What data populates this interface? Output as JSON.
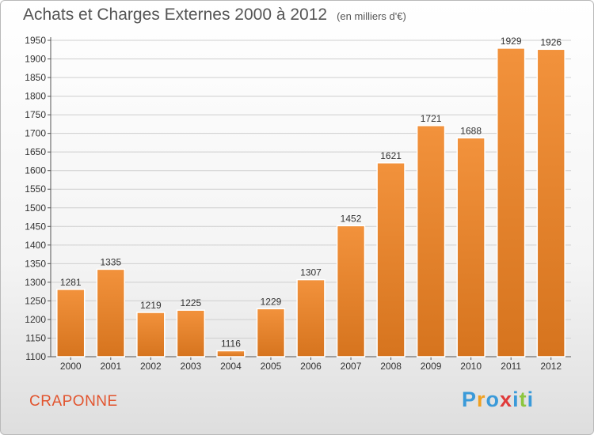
{
  "header": {
    "title": "Achats et Charges Externes 2000 à 2012",
    "subtitle": "(en milliers d'€)"
  },
  "footer": {
    "commune": "CRAPONNE",
    "brand_letters": [
      "P",
      "r",
      "o",
      "x",
      "i",
      "t",
      "i"
    ],
    "brand_colors": [
      "#3a9ad9",
      "#f0a020",
      "#3a9ad9",
      "#e03a3a",
      "#3a9ad9",
      "#8cc63f",
      "#3a9ad9"
    ]
  },
  "chart_data": {
    "type": "bar",
    "categories": [
      "2000",
      "2001",
      "2002",
      "2003",
      "2004",
      "2005",
      "2006",
      "2007",
      "2008",
      "2009",
      "2010",
      "2011",
      "2012"
    ],
    "values": [
      1281,
      1335,
      1219,
      1225,
      1116,
      1229,
      1307,
      1452,
      1621,
      1721,
      1688,
      1929,
      1926
    ],
    "value_labels": [
      "1281",
      "1335",
      "1219",
      "1225",
      "1116",
      "1229",
      "1307",
      "1452",
      "1621",
      "1721",
      "1688",
      "1929",
      "1926"
    ],
    "ylim": [
      1100,
      1950
    ],
    "yticks": [
      1100,
      1150,
      1200,
      1250,
      1300,
      1350,
      1400,
      1450,
      1500,
      1550,
      1600,
      1650,
      1700,
      1750,
      1800,
      1850,
      1900,
      1950
    ],
    "grid": true,
    "bar_color": "#f2923c",
    "bar_color_dark": "#d6741e"
  }
}
